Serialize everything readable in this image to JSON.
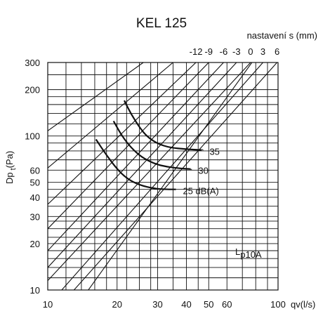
{
  "chart_data": {
    "type": "line",
    "title": "KEL 125",
    "xlabel": "qv(l/s)",
    "ylabel_main": "Dp",
    "ylabel_sub": "t",
    "ylabel_unit": "(Pa)",
    "x_scale": "log",
    "y_scale": "log",
    "xlim": [
      10,
      100
    ],
    "ylim": [
      10,
      300
    ],
    "x_ticks": [
      10,
      20,
      30,
      40,
      50,
      60,
      100
    ],
    "y_ticks": [
      10,
      20,
      30,
      40,
      50,
      60,
      100,
      200,
      300
    ],
    "x_gridlines": [
      10,
      12,
      14,
      16,
      18,
      20,
      22,
      25,
      28,
      30,
      35,
      40,
      45,
      50,
      60,
      70,
      80,
      90,
      100
    ],
    "y_gridlines": [
      10,
      12,
      14,
      16,
      18,
      20,
      22,
      25,
      28,
      30,
      35,
      40,
      45,
      50,
      60,
      70,
      80,
      90,
      100,
      120,
      140,
      160,
      180,
      200,
      250,
      300
    ],
    "settings_title": "nastavení s (mm)",
    "settings": [
      {
        "label": "-12",
        "points": [
          [
            10,
            36
          ],
          [
            44,
            300
          ]
        ]
      },
      {
        "label": "-9",
        "points": [
          [
            10,
            25
          ],
          [
            50,
            300
          ]
        ]
      },
      {
        "label": "-6",
        "points": [
          [
            10,
            18
          ],
          [
            58,
            300
          ]
        ]
      },
      {
        "label": "-3",
        "points": [
          [
            10,
            14
          ],
          [
            66,
            300
          ]
        ]
      },
      {
        "label": "0",
        "points": [
          [
            10,
            11.5
          ],
          [
            76,
            300
          ]
        ]
      },
      {
        "label": "3",
        "points": [
          [
            11.5,
            10
          ],
          [
            86,
            300
          ]
        ]
      },
      {
        "label": "6",
        "points": [
          [
            13,
            10
          ],
          [
            99,
            300
          ]
        ]
      }
    ],
    "extra_lines": [
      {
        "points": [
          [
            15,
            10
          ],
          [
            77,
            300
          ]
        ]
      },
      {
        "points": [
          [
            10,
            62
          ],
          [
            35,
            300
          ]
        ]
      },
      {
        "points": [
          [
            10,
            108
          ],
          [
            26,
            300
          ]
        ]
      }
    ],
    "noise_label_main": "L",
    "noise_label_sub": "p10A",
    "series": [
      {
        "name": "35",
        "points": [
          [
            21.5,
            170
          ],
          [
            23,
            139
          ],
          [
            25,
            114
          ],
          [
            27,
            99
          ],
          [
            30,
            89
          ],
          [
            34,
            84
          ],
          [
            40,
            82
          ],
          [
            47,
            81
          ]
        ]
      },
      {
        "name": "30",
        "points": [
          [
            19.3,
            125
          ],
          [
            21,
            100
          ],
          [
            23,
            84
          ],
          [
            25.5,
            73
          ],
          [
            29,
            66
          ],
          [
            33,
            63
          ],
          [
            38,
            61.5
          ],
          [
            42,
            61
          ]
        ]
      },
      {
        "name": "25 dB(A)",
        "points": [
          [
            16.2,
            95
          ],
          [
            18,
            75
          ],
          [
            20,
            61
          ],
          [
            22,
            53
          ],
          [
            25,
            48
          ],
          [
            29,
            45.5
          ],
          [
            33,
            45
          ],
          [
            36,
            45
          ]
        ]
      }
    ]
  }
}
